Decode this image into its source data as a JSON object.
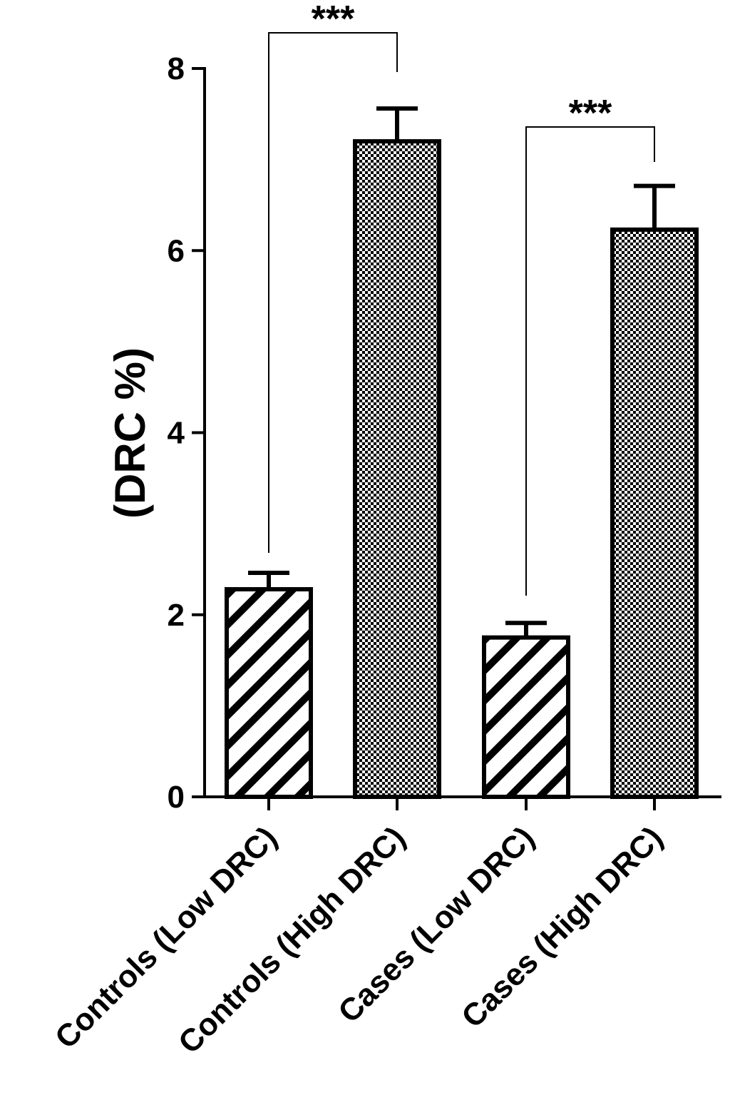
{
  "chart_data": {
    "type": "bar",
    "categories": [
      "Controls (Low DRC)",
      "Controls (High DRC)",
      "Cases (Low DRC)",
      "Cases (High DRC)"
    ],
    "values": [
      2.28,
      7.2,
      1.75,
      6.23
    ],
    "error": [
      0.18,
      0.36,
      0.16,
      0.48
    ],
    "patterns": [
      "diagonal-stripes",
      "checkerboard",
      "diagonal-stripes",
      "checkerboard"
    ],
    "ylabel": "(DRC %)",
    "ylim": [
      0,
      8
    ],
    "yticks": [
      0,
      2,
      4,
      6,
      8
    ],
    "ytick_labels": [
      "0",
      "2",
      "4",
      "6",
      "8"
    ],
    "significance": [
      {
        "from": 0,
        "to": 1,
        "label": "***"
      },
      {
        "from": 2,
        "to": 3,
        "label": "***"
      }
    ],
    "grid": false,
    "colors": {
      "bar_stroke": "#000000",
      "fill": "#ffffff"
    }
  }
}
